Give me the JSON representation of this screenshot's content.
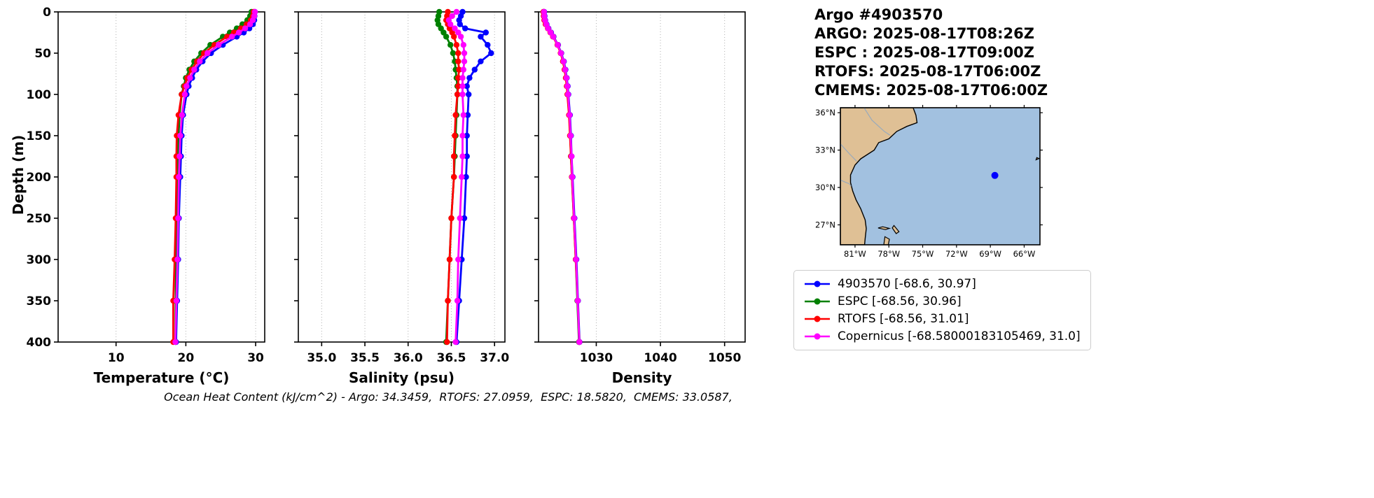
{
  "header": {
    "lines": [
      "Argo #4903570",
      "ARGO: 2025-08-17T08:26Z",
      "ESPC : 2025-08-17T09:00Z",
      "RTOFS: 2025-08-17T06:00Z",
      "CMEMS: 2025-08-17T06:00Z"
    ]
  },
  "footer": {
    "text": "Ocean Heat Content (kJ/cm^2) - Argo: 34.3459,  RTOFS: 27.0959,  ESPC: 18.5820,  CMEMS: 33.0587,"
  },
  "ocean_heat_content": {
    "Argo": 34.3459,
    "RTOFS": 27.0959,
    "ESPC": 18.582,
    "CMEMS": 33.0587
  },
  "ylabel": "Depth (m)",
  "colors": {
    "argo": "#0000ff",
    "espc": "#008000",
    "rtofs": "#ff0000",
    "cmems": "#ff00ff",
    "land": "#dfc095",
    "ocean": "#a2c1e0",
    "river": "#99aabb",
    "grid": "#b0b0b0"
  },
  "profile_depths": [
    0,
    5,
    10,
    15,
    20,
    25,
    30,
    40,
    50,
    60,
    70,
    80,
    90,
    100,
    125,
    150,
    175,
    200,
    250,
    300,
    350,
    400
  ],
  "chart_data": [
    {
      "type": "line",
      "title": "",
      "xlabel": "Temperature (°C)",
      "ylabel": "Depth (m)",
      "xlim": [
        1.7,
        31.3
      ],
      "ylim": [
        0,
        400
      ],
      "y_inverted": true,
      "grid": "x-dotted",
      "xticks": [
        10,
        20,
        30
      ],
      "xtick_labels": [
        "10",
        "20",
        "30"
      ],
      "yticks": [
        0,
        50,
        100,
        150,
        200,
        250,
        300,
        350,
        400
      ],
      "ytick_labels": [
        "0",
        "50",
        "100",
        "150",
        "200",
        "250",
        "300",
        "350",
        "400"
      ],
      "series": [
        {
          "name": "4903570",
          "color_key": "argo",
          "values": [
            29.9,
            29.85,
            29.8,
            29.6,
            29.1,
            28.3,
            27.3,
            25.3,
            23.6,
            22.4,
            21.5,
            20.9,
            20.4,
            20.1,
            19.6,
            19.4,
            19.3,
            19.2,
            19.0,
            18.9,
            18.75,
            18.6
          ]
        },
        {
          "name": "ESPC",
          "color_key": "espc",
          "values": [
            29.4,
            29.2,
            28.8,
            28.1,
            27.3,
            26.3,
            25.3,
            23.5,
            22.2,
            21.2,
            20.5,
            20.0,
            19.7,
            19.4,
            19.1,
            18.95,
            18.85,
            18.8,
            18.7,
            18.6,
            18.55,
            18.5
          ]
        },
        {
          "name": "RTOFS",
          "color_key": "rtofs",
          "values": [
            29.7,
            29.6,
            29.3,
            28.7,
            27.9,
            26.9,
            25.9,
            24.1,
            22.6,
            21.6,
            20.8,
            20.2,
            19.8,
            19.4,
            18.95,
            18.7,
            18.65,
            18.65,
            18.55,
            18.4,
            18.2,
            18.2
          ]
        },
        {
          "name": "Copernicus",
          "color_key": "cmems",
          "values": [
            29.9,
            29.8,
            29.6,
            29.2,
            28.5,
            27.6,
            26.6,
            24.7,
            23.1,
            22.0,
            21.2,
            20.6,
            20.1,
            19.85,
            19.45,
            19.2,
            19.1,
            19.0,
            18.9,
            18.8,
            18.65,
            18.5
          ]
        }
      ]
    },
    {
      "type": "line",
      "title": "",
      "xlabel": "Salinity (psu)",
      "ylabel": "Depth (m)",
      "xlim": [
        34.73,
        37.12
      ],
      "ylim": [
        0,
        400
      ],
      "y_inverted": true,
      "grid": "x-dotted",
      "xticks": [
        35.0,
        35.5,
        36.0,
        36.5,
        37.0
      ],
      "xtick_labels": [
        "35.0",
        "35.5",
        "36.0",
        "36.5",
        "37.0"
      ],
      "yticks": [
        0,
        50,
        100,
        150,
        200,
        250,
        300,
        350,
        400
      ],
      "ytick_labels": [
        "0",
        "50",
        "100",
        "150",
        "200",
        "250",
        "300",
        "350",
        "400"
      ],
      "series": [
        {
          "name": "4903570",
          "color_key": "argo",
          "values": [
            36.63,
            36.61,
            36.59,
            36.6,
            36.66,
            36.9,
            36.84,
            36.92,
            36.96,
            36.84,
            36.77,
            36.71,
            36.68,
            36.7,
            36.69,
            36.68,
            36.68,
            36.67,
            36.65,
            36.62,
            36.59,
            36.56
          ]
        },
        {
          "name": "ESPC",
          "color_key": "espc",
          "values": [
            36.36,
            36.35,
            36.34,
            36.35,
            36.38,
            36.41,
            36.44,
            36.49,
            36.52,
            36.54,
            36.55,
            36.56,
            36.57,
            36.57,
            36.56,
            36.55,
            36.54,
            36.53,
            36.5,
            36.48,
            36.46,
            36.44
          ]
        },
        {
          "name": "RTOFS",
          "color_key": "rtofs",
          "values": [
            36.46,
            36.45,
            36.44,
            36.46,
            36.48,
            36.51,
            36.53,
            36.56,
            36.58,
            36.58,
            36.59,
            36.58,
            36.58,
            36.57,
            36.55,
            36.54,
            36.53,
            36.53,
            36.5,
            36.48,
            36.46,
            36.45
          ]
        },
        {
          "name": "Copernicus",
          "color_key": "cmems",
          "values": [
            36.56,
            36.51,
            36.47,
            36.49,
            36.54,
            36.58,
            36.61,
            36.64,
            36.65,
            36.65,
            36.64,
            36.63,
            36.63,
            36.63,
            36.64,
            36.63,
            36.63,
            36.62,
            36.6,
            36.58,
            36.57,
            36.55
          ]
        }
      ]
    },
    {
      "type": "line",
      "title": "",
      "xlabel": "Density",
      "ylabel": "Depth (m)",
      "xlim": [
        1021.0,
        1053.2
      ],
      "ylim": [
        0,
        400
      ],
      "y_inverted": true,
      "grid": "x-dotted",
      "xticks": [
        1030,
        1040,
        1050
      ],
      "xtick_labels": [
        "1030",
        "1040",
        "1050"
      ],
      "yticks": [
        0,
        50,
        100,
        150,
        200,
        250,
        300,
        350,
        400
      ],
      "ytick_labels": [
        "0",
        "50",
        "100",
        "150",
        "200",
        "250",
        "300",
        "350",
        "400"
      ],
      "series": [
        {
          "name": "4903570",
          "color_key": "argo",
          "values": [
            1021.9,
            1021.95,
            1022.05,
            1022.25,
            1022.55,
            1022.95,
            1023.35,
            1024.05,
            1024.55,
            1024.95,
            1025.2,
            1025.4,
            1025.55,
            1025.65,
            1025.9,
            1026.05,
            1026.15,
            1026.3,
            1026.6,
            1026.9,
            1027.15,
            1027.4
          ]
        },
        {
          "name": "ESPC",
          "color_key": "espc",
          "values": [
            1021.8,
            1021.85,
            1021.95,
            1022.15,
            1022.5,
            1022.9,
            1023.3,
            1024.0,
            1024.5,
            1024.85,
            1025.1,
            1025.3,
            1025.45,
            1025.55,
            1025.8,
            1025.95,
            1026.05,
            1026.2,
            1026.5,
            1026.8,
            1027.05,
            1027.3
          ]
        },
        {
          "name": "RTOFS",
          "color_key": "rtofs",
          "values": [
            1021.75,
            1021.8,
            1021.9,
            1022.1,
            1022.45,
            1022.85,
            1023.25,
            1023.95,
            1024.45,
            1024.8,
            1025.05,
            1025.25,
            1025.4,
            1025.5,
            1025.75,
            1025.9,
            1026.05,
            1026.2,
            1026.5,
            1026.8,
            1027.1,
            1027.35
          ]
        },
        {
          "name": "Copernicus",
          "color_key": "cmems",
          "values": [
            1021.85,
            1021.9,
            1022.0,
            1022.2,
            1022.5,
            1022.9,
            1023.3,
            1024.0,
            1024.5,
            1024.9,
            1025.15,
            1025.35,
            1025.5,
            1025.6,
            1025.85,
            1026.0,
            1026.15,
            1026.25,
            1026.55,
            1026.85,
            1027.1,
            1027.35
          ]
        }
      ]
    }
  ],
  "map": {
    "lon_range": [
      -82.3,
      -64.6
    ],
    "lat_range": [
      25.4,
      36.4
    ],
    "lon_ticks": [
      -81,
      -78,
      -75,
      -72,
      -69,
      -66
    ],
    "lon_tick_labels": [
      "81°W",
      "78°W",
      "75°W",
      "72°W",
      "69°W",
      "66°W"
    ],
    "lat_ticks": [
      27,
      30,
      33,
      36
    ],
    "lat_tick_labels": [
      "27°N",
      "30°N",
      "33°N",
      "36°N"
    ],
    "marker": {
      "lon": -68.6,
      "lat": 30.97,
      "color_key": "argo"
    },
    "land_polygon": [
      [
        -82.3,
        36.4
      ],
      [
        -75.85,
        36.4
      ],
      [
        -75.6,
        35.8
      ],
      [
        -75.5,
        35.2
      ],
      [
        -76.4,
        34.9
      ],
      [
        -77.3,
        34.5
      ],
      [
        -78.0,
        33.9
      ],
      [
        -78.9,
        33.6
      ],
      [
        -79.3,
        33.0
      ],
      [
        -80.5,
        32.3
      ],
      [
        -81.0,
        31.8
      ],
      [
        -81.4,
        31.0
      ],
      [
        -81.4,
        30.4
      ],
      [
        -81.2,
        29.7
      ],
      [
        -80.9,
        29.0
      ],
      [
        -80.5,
        28.3
      ],
      [
        -80.1,
        27.4
      ],
      [
        -80.0,
        26.7
      ],
      [
        -80.1,
        25.9
      ],
      [
        -80.15,
        25.4
      ],
      [
        -82.3,
        25.4
      ]
    ],
    "islands": [
      [
        [
          -78.95,
          26.75
        ],
        [
          -78.3,
          26.62
        ],
        [
          -77.95,
          26.72
        ],
        [
          -78.55,
          26.85
        ]
      ],
      [
        [
          -77.55,
          26.95
        ],
        [
          -77.1,
          26.45
        ],
        [
          -77.35,
          26.3
        ],
        [
          -77.7,
          26.75
        ]
      ],
      [
        [
          -78.45,
          25.4
        ],
        [
          -78.05,
          25.4
        ],
        [
          -77.95,
          25.85
        ],
        [
          -78.35,
          26.05
        ]
      ],
      [
        [
          -64.95,
          32.22
        ],
        [
          -64.68,
          32.32
        ],
        [
          -64.88,
          32.4
        ]
      ]
    ],
    "rivers": [
      [
        [
          -80.2,
          36.4
        ],
        [
          -79.5,
          35.4
        ],
        [
          -78.4,
          34.5
        ],
        [
          -77.9,
          34.2
        ]
      ],
      [
        [
          -82.3,
          33.5
        ],
        [
          -81.5,
          32.7
        ],
        [
          -80.85,
          32.1
        ]
      ],
      [
        [
          -82.3,
          30.6
        ],
        [
          -81.8,
          30.4
        ],
        [
          -81.5,
          30.3
        ],
        [
          -81.35,
          30.1
        ]
      ]
    ]
  },
  "legend": {
    "entries": [
      {
        "label": "4903570 [-68.6, 30.97]",
        "color_key": "argo"
      },
      {
        "label": "ESPC [-68.56, 30.96]",
        "color_key": "espc"
      },
      {
        "label": "RTOFS [-68.56, 31.01]",
        "color_key": "rtofs"
      },
      {
        "label": "Copernicus [-68.58000183105469, 31.0]",
        "color_key": "cmems"
      }
    ]
  }
}
